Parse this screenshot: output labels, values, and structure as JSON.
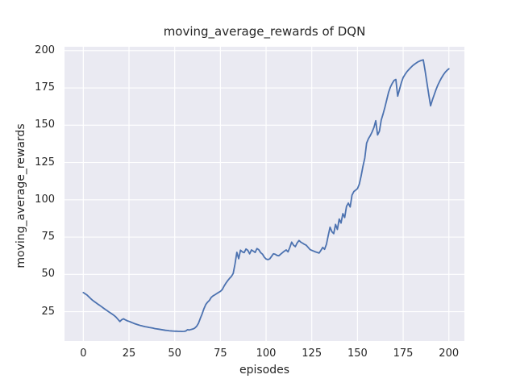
{
  "figure": {
    "background": "#ffffff"
  },
  "chart_data": {
    "type": "line",
    "title": "moving_average_rewards of DQN",
    "xlabel": "episodes",
    "ylabel": "moving_average_rewards",
    "x_ticks": [
      0,
      25,
      50,
      75,
      100,
      125,
      150,
      175,
      200
    ],
    "y_ticks": [
      25,
      50,
      75,
      100,
      125,
      150,
      175,
      200
    ],
    "xlim": [
      -10.3,
      208.5
    ],
    "ylim": [
      5.3,
      202.6
    ],
    "grid": true,
    "legend_position": "none",
    "style": {
      "plot_background": "#EAEAF2",
      "grid_color": "#FFFFFF",
      "grid_width": 1.2,
      "text_color": "#262626",
      "line_width": 1.8
    },
    "series": [
      {
        "name": "moving_average_rewards",
        "color": "#4C72B0",
        "x_start": 0,
        "x_step": 1,
        "values": [
          37.8,
          37.0,
          36.2,
          35.0,
          33.8,
          32.7,
          31.8,
          30.9,
          30.0,
          29.2,
          28.3,
          27.4,
          26.5,
          25.7,
          24.8,
          24.0,
          23.2,
          22.3,
          21.2,
          19.8,
          18.4,
          19.6,
          20.2,
          19.5,
          18.9,
          18.5,
          18.0,
          17.5,
          17.0,
          16.6,
          16.2,
          15.8,
          15.5,
          15.2,
          14.9,
          14.7,
          14.4,
          14.2,
          14.0,
          13.7,
          13.5,
          13.3,
          13.1,
          12.9,
          12.7,
          12.5,
          12.4,
          12.2,
          12.1,
          12.0,
          11.9,
          11.9,
          11.8,
          11.8,
          11.7,
          11.8,
          12.0,
          12.9,
          12.7,
          13.1,
          13.4,
          14.0,
          15.2,
          17.2,
          20.5,
          23.5,
          27.0,
          29.8,
          31.4,
          32.6,
          34.6,
          35.6,
          36.3,
          37.1,
          37.9,
          38.6,
          39.8,
          42.1,
          44.1,
          45.8,
          47.3,
          48.6,
          50.6,
          57.0,
          64.8,
          60.5,
          66.2,
          65.1,
          64.6,
          67.0,
          66.1,
          63.8,
          66.4,
          65.6,
          64.7,
          67.3,
          66.5,
          64.6,
          63.6,
          61.6,
          60.3,
          59.9,
          60.4,
          62.1,
          63.8,
          63.5,
          62.7,
          62.5,
          63.6,
          64.6,
          65.6,
          66.4,
          65.1,
          68.1,
          71.6,
          69.6,
          68.6,
          71.1,
          72.7,
          71.6,
          70.9,
          70.1,
          69.5,
          68.1,
          66.7,
          66.1,
          65.6,
          65.1,
          64.7,
          64.3,
          66.1,
          68.1,
          66.8,
          70.1,
          76.1,
          81.6,
          78.6,
          77.3,
          83.5,
          80.1,
          87.1,
          84.4,
          90.7,
          88.1,
          95.6,
          97.8,
          95.2,
          103.1,
          105.5,
          106.5,
          107.5,
          110.5,
          116.0,
          122.5,
          128.0,
          138.0,
          141.0,
          143.0,
          145.5,
          148.5,
          153.0,
          143.5,
          146.0,
          153.5,
          157.5,
          162.0,
          167.0,
          172.0,
          175.5,
          178.0,
          180.0,
          180.7,
          169.5,
          174.0,
          178.5,
          182.0,
          184.0,
          185.8,
          187.2,
          188.5,
          189.7,
          190.7,
          191.6,
          192.4,
          193.0,
          193.5,
          193.8,
          186.5,
          178.5,
          170.5,
          163.0,
          167.0,
          170.5,
          174.0,
          177.0,
          179.5,
          181.8,
          183.8,
          185.5,
          186.8,
          187.8
        ]
      }
    ]
  }
}
